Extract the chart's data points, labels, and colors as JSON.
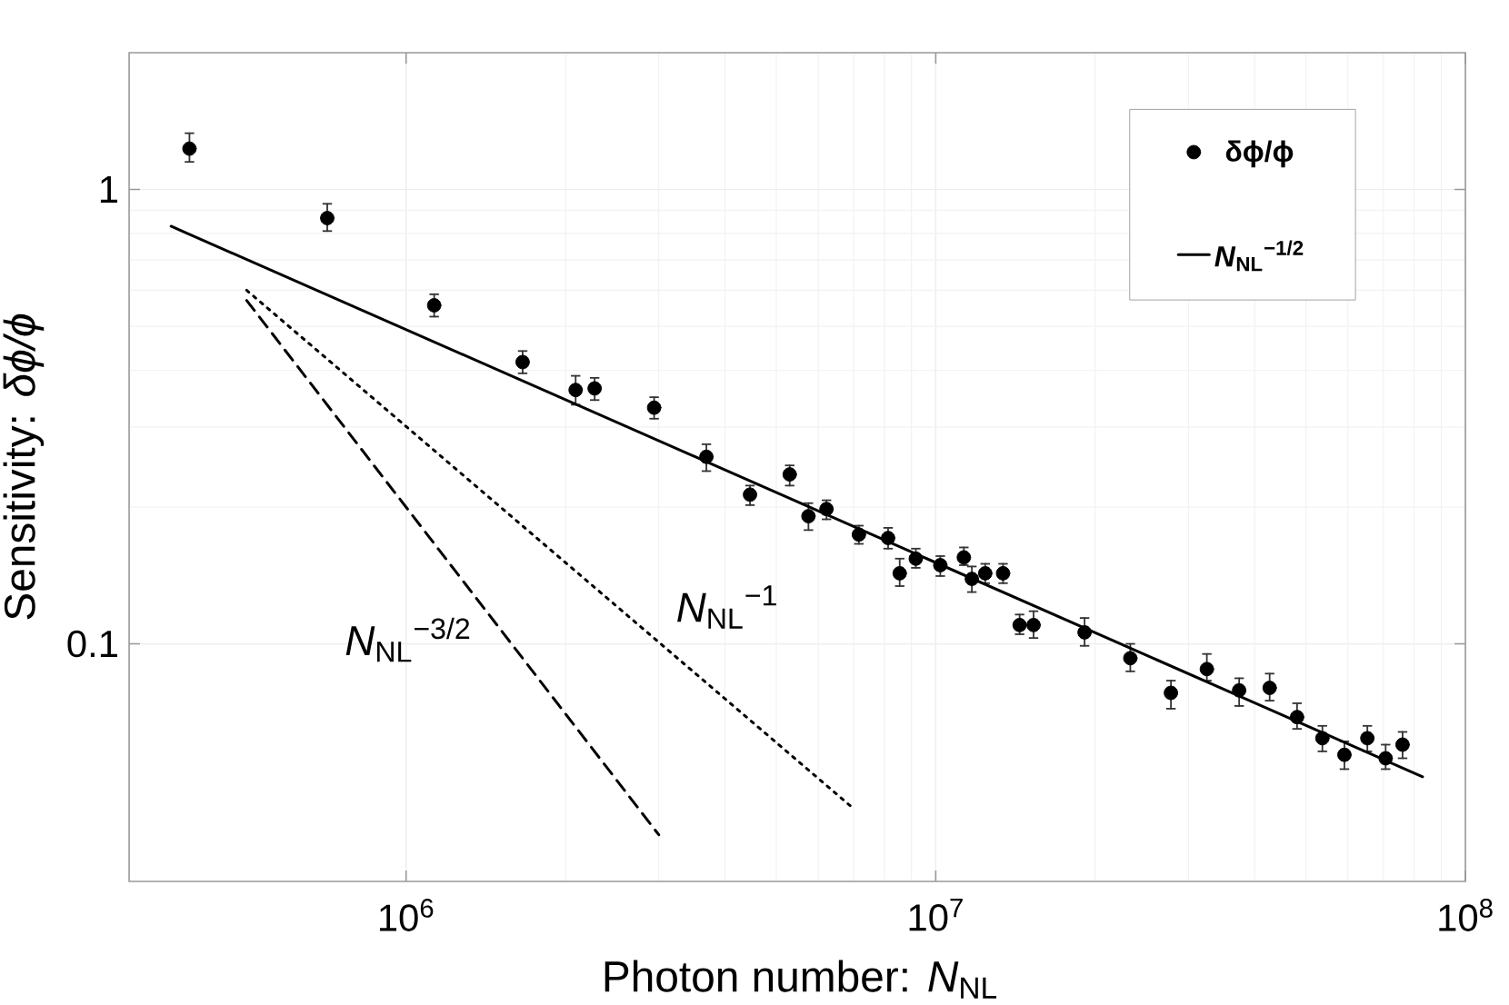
{
  "chart_data": {
    "type": "scatter",
    "log": "xy",
    "grid": true,
    "legend": "top right",
    "xlabel": "Photon number: *N*$_{NL}$",
    "ylabel": "Sensitivity: *δϕ/ϕ*",
    "xlim": [
      300000,
      100000000
    ],
    "ylim": [
      0.03,
      2
    ],
    "xticks": [
      {
        "value": 1000000,
        "label": "10$^{6}$"
      },
      {
        "value": 10000000,
        "label": "10$^{7}$"
      },
      {
        "value": 100000000,
        "label": "10$^{8}$"
      }
    ],
    "yticks": [
      0.1,
      1
    ],
    "annotations": [
      "*N*$_{NL}$$^{−3/2}$",
      "*N*$_{NL}$$^{−1}$"
    ],
    "series": [
      {
        "name": "δϕ/ϕ",
        "marker": "circle",
        "color": "#000000",
        "x": [
          390000.0,
          710000.0,
          1130000.0,
          1660000.0,
          2090000.0,
          2270000.0,
          2940000.0,
          3690000.0,
          4460000.0,
          5300000.0,
          5750000.0,
          6220000.0,
          7160000.0,
          8130000.0,
          8550000.0,
          9170000.0,
          10200000.0,
          11300000.0,
          11700000.0,
          12400000.0,
          13400000.0,
          14400000.0,
          15300000.0,
          19100000.0,
          23300000.0,
          27800000.0,
          32500000.0,
          37400000.0,
          42700000.0,
          48100000.0,
          53700000.0,
          59100000.0,
          65300000.0,
          70700000.0,
          76100000.0
        ],
        "values": [
          1.23,
          0.865,
          0.556,
          0.417,
          0.362,
          0.365,
          0.331,
          0.258,
          0.213,
          0.236,
          0.191,
          0.198,
          0.174,
          0.171,
          0.143,
          0.154,
          0.149,
          0.155,
          0.139,
          0.143,
          0.143,
          0.11,
          0.11,
          0.106,
          0.093,
          0.078,
          0.088,
          0.079,
          0.08,
          0.069,
          0.062,
          0.057,
          0.062,
          0.056,
          0.06
        ],
        "errors": [
          [
            1.15,
            1.33
          ],
          [
            0.81,
            0.93
          ],
          [
            0.525,
            0.588
          ],
          [
            0.394,
            0.441
          ],
          [
            0.336,
            0.389
          ],
          [
            0.344,
            0.385
          ],
          [
            0.313,
            0.349
          ],
          [
            0.24,
            0.275
          ],
          [
            0.202,
            0.223
          ],
          [
            0.223,
            0.247
          ],
          [
            0.178,
            0.204
          ],
          [
            0.188,
            0.207
          ],
          [
            0.166,
            0.182
          ],
          [
            0.162,
            0.18
          ],
          [
            0.134,
            0.154
          ],
          [
            0.147,
            0.162
          ],
          [
            0.141,
            0.156
          ],
          [
            0.149,
            0.163
          ],
          [
            0.13,
            0.148
          ],
          [
            0.136,
            0.15
          ],
          [
            0.136,
            0.15
          ],
          [
            0.105,
            0.116
          ],
          [
            0.103,
            0.118
          ],
          [
            0.099,
            0.114
          ],
          [
            0.087,
            0.1
          ],
          [
            0.072,
            0.083
          ],
          [
            0.083,
            0.095
          ],
          [
            0.073,
            0.084
          ],
          [
            0.075,
            0.086
          ],
          [
            0.065,
            0.074
          ],
          [
            0.058,
            0.066
          ],
          [
            0.053,
            0.061
          ],
          [
            0.058,
            0.066
          ],
          [
            0.053,
            0.06
          ],
          [
            0.056,
            0.064
          ]
        ]
      },
      {
        "name": "*N*$_{NL}$$^{−1/2}$",
        "type": "line",
        "marker": "none",
        "line_style": "solid",
        "color": "#000000",
        "x": [
          360000.0,
          83000000.0
        ],
        "values": [
          0.83,
          0.051
        ]
      },
      {
        "type": "line",
        "marker": "none",
        "line_style": "dotted",
        "color": "#000000",
        "x": [
          500000.0,
          6900000.0
        ],
        "values": [
          0.6,
          0.044
        ]
      },
      {
        "type": "line",
        "marker": "none",
        "line_style": "dashed",
        "color": "#000000",
        "x": [
          500000.0,
          3000000.0
        ],
        "values": [
          0.57,
          0.038
        ]
      }
    ]
  }
}
